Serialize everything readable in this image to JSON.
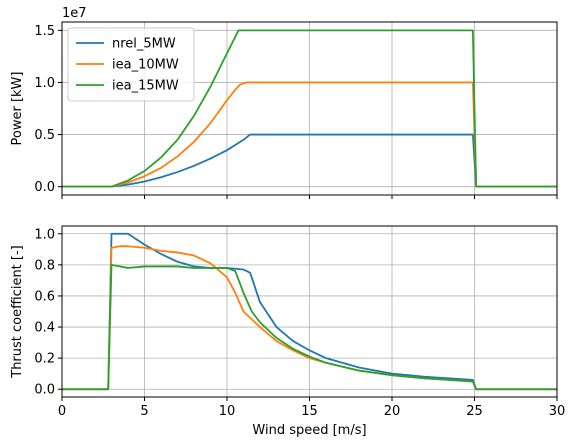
{
  "chart_data": [
    {
      "type": "line",
      "ylabel": "Power [kW]",
      "xlabel": "",
      "offset_text": "1e7",
      "xlim": [
        0,
        30
      ],
      "ylim": [
        -0.08,
        1.58
      ],
      "xticks": [
        0,
        5,
        10,
        15,
        20,
        25,
        30
      ],
      "show_xticklabels": false,
      "yticks": [
        0.0,
        0.5,
        1.0,
        1.5
      ],
      "yticklabels": [
        "0.0",
        "0.5",
        "1.0",
        "1.5"
      ],
      "grid": true,
      "legend": "upper left",
      "series": [
        {
          "name": "nrel_5MW",
          "color": "#1f77b4",
          "x": [
            0,
            3,
            4,
            5,
            6,
            7,
            8,
            9,
            10,
            10.5,
            11,
            11.4,
            12,
            15,
            20,
            24.9,
            25.1,
            30
          ],
          "y": [
            0,
            0,
            0.02,
            0.05,
            0.09,
            0.14,
            0.2,
            0.27,
            0.35,
            0.4,
            0.45,
            0.5,
            0.5,
            0.5,
            0.5,
            0.5,
            0,
            0
          ]
        },
        {
          "name": "iea_10MW",
          "color": "#ff7f0e",
          "x": [
            0,
            3,
            4,
            5,
            6,
            7,
            8,
            9,
            10,
            10.5,
            10.8,
            11.2,
            12,
            15,
            20,
            24.9,
            25.1,
            30
          ],
          "y": [
            0,
            0,
            0.04,
            0.1,
            0.18,
            0.29,
            0.43,
            0.61,
            0.83,
            0.93,
            0.98,
            1.0,
            1.0,
            1.0,
            1.0,
            1.0,
            0,
            0
          ]
        },
        {
          "name": "iea_15MW",
          "color": "#2ca02c",
          "x": [
            0,
            3,
            4,
            5,
            6,
            7,
            8,
            9,
            10,
            10.7,
            11,
            15,
            20,
            24.9,
            25.1,
            30
          ],
          "y": [
            0,
            0,
            0.06,
            0.15,
            0.28,
            0.45,
            0.68,
            0.96,
            1.28,
            1.5,
            1.5,
            1.5,
            1.5,
            1.5,
            0,
            0
          ]
        }
      ]
    },
    {
      "type": "line",
      "ylabel": "Thrust coefficient [-]",
      "xlabel": "Wind speed [m/s]",
      "xlim": [
        0,
        30
      ],
      "ylim": [
        -0.05,
        1.05
      ],
      "xticks": [
        0,
        5,
        10,
        15,
        20,
        25,
        30
      ],
      "xticklabels": [
        "0",
        "5",
        "10",
        "15",
        "20",
        "25",
        "30"
      ],
      "show_xticklabels": true,
      "yticks": [
        0.0,
        0.2,
        0.4,
        0.6,
        0.8,
        1.0
      ],
      "yticklabels": [
        "0.0",
        "0.2",
        "0.4",
        "0.6",
        "0.8",
        "1.0"
      ],
      "grid": true,
      "series": [
        {
          "name": "nrel_5MW",
          "color": "#1f77b4",
          "x": [
            0,
            2.8,
            3,
            4,
            5,
            6,
            7,
            8,
            9,
            10,
            11,
            11.4,
            12,
            13,
            14,
            15,
            16,
            18,
            20,
            22,
            24.9,
            25.1,
            30
          ],
          "y": [
            0,
            0,
            1.0,
            1.0,
            0.93,
            0.87,
            0.82,
            0.79,
            0.78,
            0.78,
            0.77,
            0.75,
            0.56,
            0.4,
            0.31,
            0.25,
            0.2,
            0.14,
            0.1,
            0.08,
            0.06,
            0,
            0
          ]
        },
        {
          "name": "iea_10MW",
          "color": "#ff7f0e",
          "x": [
            0,
            2.8,
            3,
            3.5,
            4,
            5,
            6,
            7,
            8,
            9,
            10,
            10.5,
            11,
            11.5,
            12,
            13,
            14,
            15,
            16,
            18,
            20,
            22,
            24.9,
            25.1,
            30
          ],
          "y": [
            0,
            0,
            0.91,
            0.92,
            0.92,
            0.91,
            0.89,
            0.88,
            0.86,
            0.81,
            0.72,
            0.62,
            0.5,
            0.45,
            0.4,
            0.31,
            0.25,
            0.2,
            0.17,
            0.12,
            0.09,
            0.07,
            0.05,
            0,
            0
          ]
        },
        {
          "name": "iea_15MW",
          "color": "#2ca02c",
          "x": [
            0,
            2.8,
            3,
            3.5,
            4,
            5,
            6,
            7,
            8,
            9,
            10,
            10.5,
            11,
            11.5,
            12,
            13,
            14,
            15,
            16,
            18,
            20,
            22,
            24.9,
            25.1,
            30
          ],
          "y": [
            0,
            0,
            0.8,
            0.79,
            0.78,
            0.79,
            0.79,
            0.79,
            0.78,
            0.78,
            0.78,
            0.76,
            0.62,
            0.5,
            0.43,
            0.33,
            0.26,
            0.21,
            0.17,
            0.12,
            0.09,
            0.07,
            0.05,
            0,
            0
          ]
        }
      ]
    }
  ]
}
